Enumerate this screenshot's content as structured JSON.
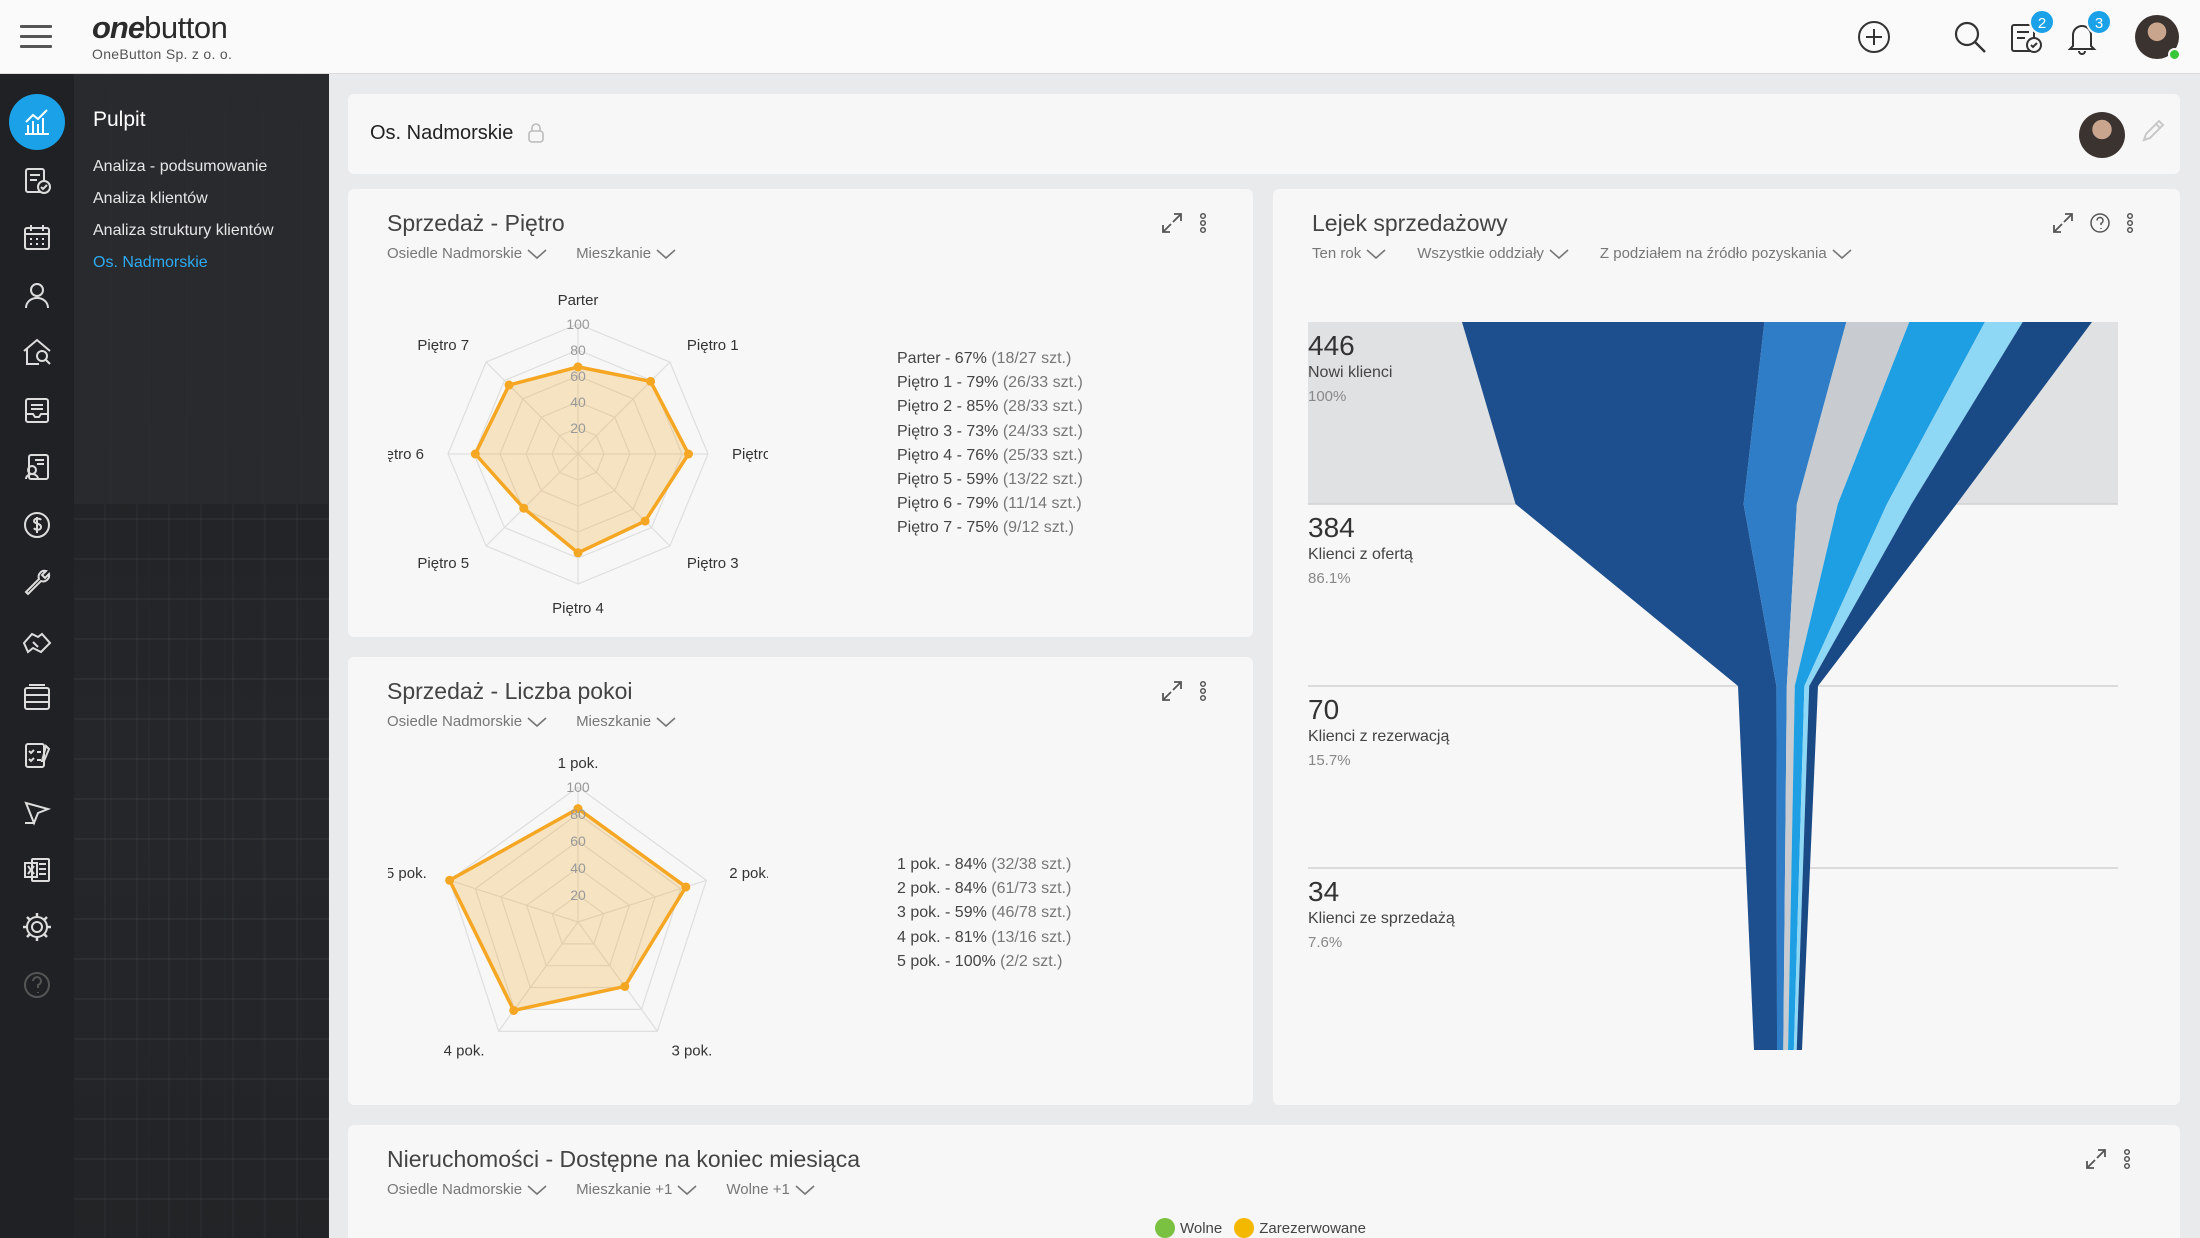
{
  "app": {
    "logo_bold": "one",
    "logo_light": "button",
    "company": "OneButton Sp. z o. o.",
    "badges": {
      "tasks": "2",
      "notifications": "3"
    }
  },
  "subnav": {
    "title": "Pulpit",
    "links": [
      "Analiza - podsumowanie",
      "Analiza klientów",
      "Analiza struktury klientów",
      "Os. Nadmorskie"
    ]
  },
  "header": {
    "title": "Os. Nadmorskie"
  },
  "floor_chart": {
    "title": "Sprzedaż - Piętro",
    "filters": [
      "Osiedle Nadmorskie",
      "Mieszkanie"
    ],
    "legend": [
      {
        "label": "Parter - 67%",
        "count": "(18/27 szt.)"
      },
      {
        "label": "Piętro 1 - 79%",
        "count": "(26/33 szt.)"
      },
      {
        "label": "Piętro 2 - 85%",
        "count": "(28/33 szt.)"
      },
      {
        "label": "Piętro 3 - 73%",
        "count": "(24/33 szt.)"
      },
      {
        "label": "Piętro 4 - 76%",
        "count": "(25/33 szt.)"
      },
      {
        "label": "Piętro 5 - 59%",
        "count": "(13/22 szt.)"
      },
      {
        "label": "Piętro 6 - 79%",
        "count": "(11/14 szt.)"
      },
      {
        "label": "Piętro 7 - 75%",
        "count": "(9/12 szt.)"
      }
    ]
  },
  "rooms_chart": {
    "title": "Sprzedaż - Liczba pokoi",
    "filters": [
      "Osiedle Nadmorskie",
      "Mieszkanie"
    ],
    "legend": [
      {
        "label": "1 pok. - 84%",
        "count": "(32/38 szt.)"
      },
      {
        "label": "2 pok. - 84%",
        "count": "(61/73 szt.)"
      },
      {
        "label": "3 pok. - 59%",
        "count": "(46/78 szt.)"
      },
      {
        "label": "4 pok. - 81%",
        "count": "(13/16 szt.)"
      },
      {
        "label": "5 pok. - 100%",
        "count": "(2/2 szt.)"
      }
    ]
  },
  "funnel": {
    "title": "Lejek sprzedażowy",
    "filters": [
      "Ten rok",
      "Wszystkie oddziały",
      "Z podziałem na źródło pozyskania"
    ],
    "stages": [
      {
        "value": "446",
        "label": "Nowi klienci",
        "pct": "100%"
      },
      {
        "value": "384",
        "label": "Klienci z ofertą",
        "pct": "86.1%"
      },
      {
        "value": "70",
        "label": "Klienci z rezerwacją",
        "pct": "15.7%"
      },
      {
        "value": "34",
        "label": "Klienci ze sprzedażą",
        "pct": "7.6%"
      }
    ]
  },
  "availability": {
    "title": "Nieruchomości - Dostępne na koniec miesiąca",
    "filters": [
      "Osiedle Nadmorskie",
      "Mieszkanie +1",
      "Wolne +1"
    ],
    "legend": [
      {
        "label": "Wolne",
        "color": "#7ac142"
      },
      {
        "label": "Zarezerwowane",
        "color": "#f5b800"
      }
    ]
  },
  "chart_data": [
    {
      "type": "radar",
      "title": "Sprzedaż - Piętro",
      "categories": [
        "Parter",
        "Piętro 1",
        "Piętro 2",
        "Piętro 3",
        "Piętro 4",
        "Piętro 5",
        "Piętro 6",
        "Piętro 7"
      ],
      "values": [
        67,
        79,
        85,
        73,
        76,
        59,
        79,
        75
      ],
      "ticks": [
        "20",
        "40",
        "60",
        "80",
        "100"
      ],
      "ylim": [
        0,
        100
      ],
      "color": "#f5a623"
    },
    {
      "type": "radar",
      "title": "Sprzedaż - Liczba pokoi",
      "categories": [
        "1 pok.",
        "2 pok.",
        "3 pok.",
        "4 pok.",
        "5 pok."
      ],
      "values": [
        84,
        84,
        59,
        81,
        100
      ],
      "ticks": [
        "20",
        "40",
        "60",
        "80",
        "100"
      ],
      "ylim": [
        0,
        100
      ],
      "color": "#f5a623"
    },
    {
      "type": "funnel",
      "title": "Lejek sprzedażowy",
      "categories": [
        "Nowi klienci",
        "Klienci z ofertą",
        "Klienci z rezerwacją",
        "Klienci ze sprzedażą"
      ],
      "values": [
        446,
        384,
        70,
        34
      ],
      "percent": [
        100,
        86.1,
        15.7,
        7.6
      ],
      "colors": [
        "#1d4f8f",
        "#2e7dc6",
        "#c8ccd0",
        "#1e9fe3",
        "#8ed8f5",
        "#1a4a86"
      ]
    }
  ]
}
